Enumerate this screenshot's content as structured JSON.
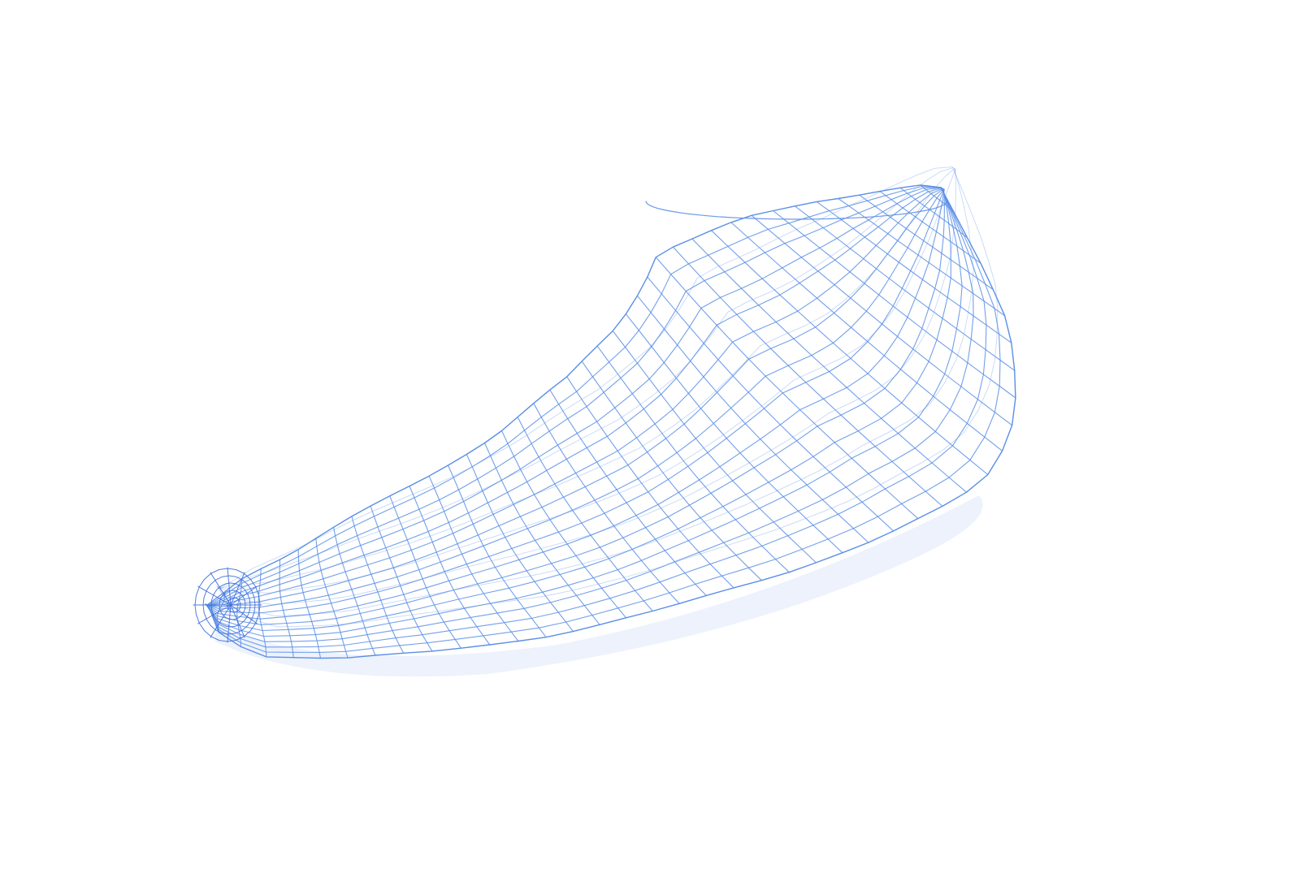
{
  "scene": {
    "object": "foot-last-wireframe",
    "background_color": "#ffffff",
    "wire_color": "#5b8fe6",
    "wire_color_dense": "#3f6fdc",
    "sole_shadow_color": "#dfe7fa"
  },
  "mesh": {
    "rows": 17,
    "columns": 42
  }
}
